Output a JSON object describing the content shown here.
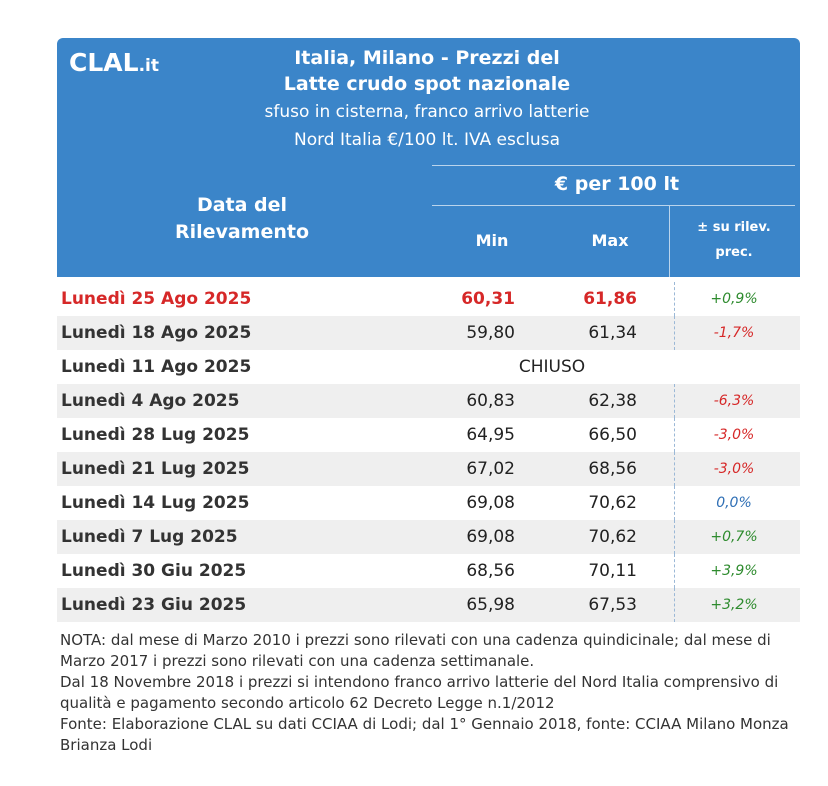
{
  "logo": {
    "text": "CLAL",
    "suffix": ".it"
  },
  "title": {
    "line1": "Italia, Milano - Prezzi del",
    "line2": "Latte crudo spot nazionale"
  },
  "subtitle": {
    "line1": "sfuso in cisterna, franco arrivo latterie",
    "line2": "Nord Italia €/100 lt. IVA esclusa"
  },
  "columns": {
    "date_line1": "Data del",
    "date_line2": "Rilevamento",
    "price_group": "€ per 100 lt",
    "min": "Min",
    "max": "Max",
    "var_line1": "± su rilev.",
    "var_line2": "prec."
  },
  "rows": [
    {
      "date": "Lunedì 25 Ago 2025",
      "min": "60,31",
      "max": "61,86",
      "var": "+0,9%"
    },
    {
      "date": "Lunedì 18 Ago 2025",
      "min": "59,80",
      "max": "61,34",
      "var": "-1,7%"
    },
    {
      "date": "Lunedì 11 Ago 2025",
      "closed": "CHIUSO"
    },
    {
      "date": "Lunedì 4 Ago 2025",
      "min": "60,83",
      "max": "62,38",
      "var": "-6,3%"
    },
    {
      "date": "Lunedì 28 Lug 2025",
      "min": "64,95",
      "max": "66,50",
      "var": "-3,0%"
    },
    {
      "date": "Lunedì 21 Lug 2025",
      "min": "67,02",
      "max": "68,56",
      "var": "-3,0%"
    },
    {
      "date": "Lunedì 14 Lug 2025",
      "min": "69,08",
      "max": "70,62",
      "var": "0,0%"
    },
    {
      "date": "Lunedì 7 Lug 2025",
      "min": "69,08",
      "max": "70,62",
      "var": "+0,7%"
    },
    {
      "date": "Lunedì 30 Giu 2025",
      "min": "68,56",
      "max": "70,11",
      "var": "+3,9%"
    },
    {
      "date": "Lunedì 23 Giu 2025",
      "min": "65,98",
      "max": "67,53",
      "var": "+3,2%"
    }
  ],
  "notes": [
    "NOTA: dal mese di Marzo 2010 i prezzi sono rilevati con una cadenza quindicinale; dal mese di Marzo 2017 i prezzi sono rilevati con una cadenza settimanale.",
    "Dal 18 Novembre 2018 i prezzi si intendono franco arrivo latterie del Nord Italia comprensivo di qualità e pagamento secondo articolo 62 Decreto Legge n.1/2012",
    "Fonte: Elaborazione CLAL su dati CCIAA di Lodi; dal 1° Gennaio 2018, fonte: CCIAA Milano Monza Brianza Lodi"
  ],
  "colors": {
    "header_bg": "#3b85c9",
    "highlight": "#d62828",
    "positive": "#2e8b2e",
    "negative": "#d62828",
    "neutral": "#2f6fb5"
  }
}
